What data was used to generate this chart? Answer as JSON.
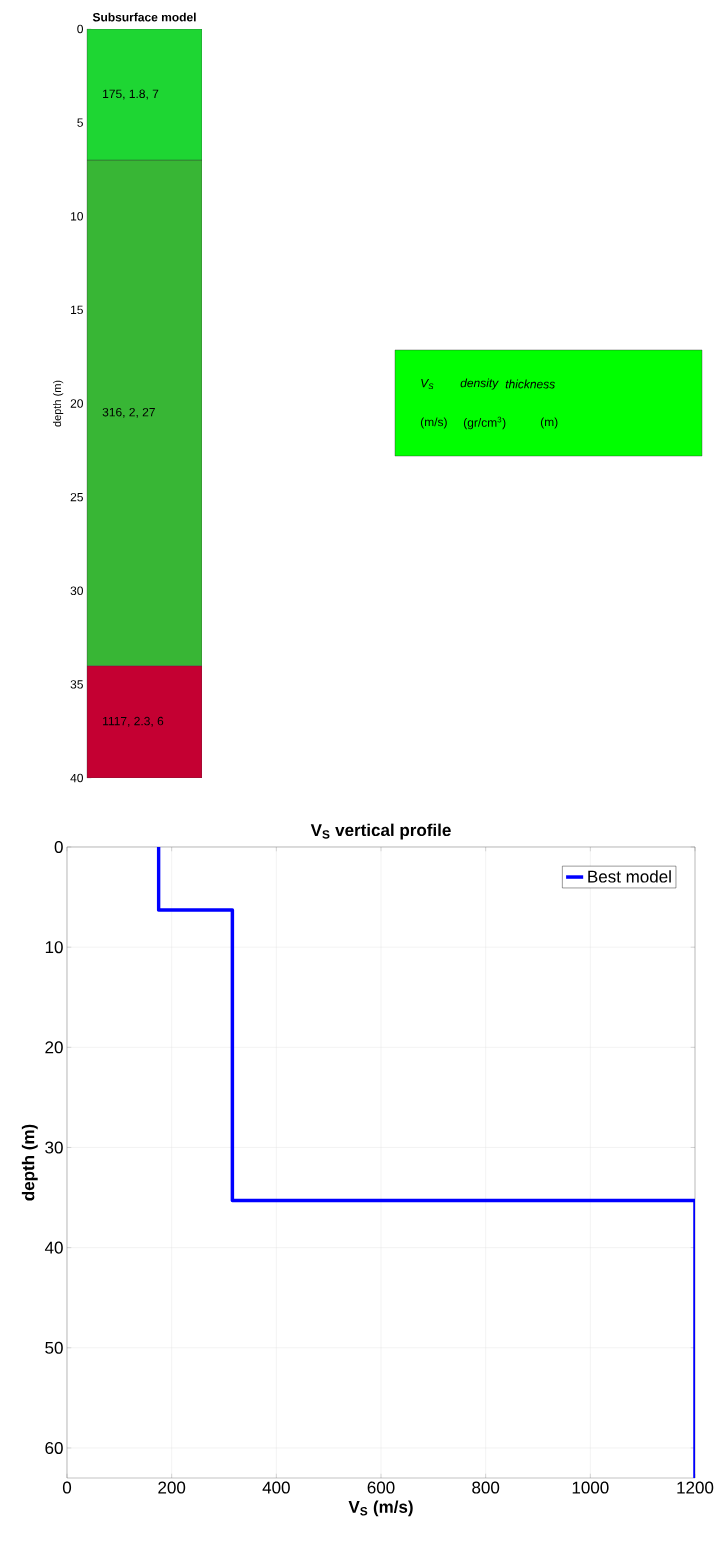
{
  "chart_data": [
    {
      "type": "bar",
      "title": "Subsurface model",
      "ylabel": "depth (m)",
      "stacked": true,
      "categories": [
        null
      ],
      "series": [
        {
          "color": "#1ed633",
          "values": [
            7
          ],
          "value_labels": [
            "175, 1.8, 7"
          ]
        },
        {
          "color": "#38b635",
          "values": [
            27
          ],
          "value_labels": [
            "316, 2, 27"
          ]
        },
        {
          "color": "#c40032",
          "values": [
            6
          ],
          "value_labels": [
            "1117, 2.3, 6"
          ]
        }
      ],
      "ylim": [
        40,
        0
      ],
      "yticks": [
        0,
        5,
        10,
        15,
        20,
        25,
        30,
        35,
        40
      ],
      "tick_labels": "y",
      "annotations": [
        "V$_{S}$",
        "density",
        "thickness",
        "(m/s)",
        "(gr/cm$^{3}$)",
        "(m)"
      ]
    },
    {
      "type": "line",
      "title": "V$_{S}$ vertical profile",
      "xlabel": "V$_{S}$ (m/s)",
      "ylabel": "depth (m)",
      "series": [
        {
          "name": "Best model",
          "color": "#0000ff",
          "x": [
            175,
            175,
            316,
            316,
            1200,
            1200
          ],
          "values": [
            0,
            6.3,
            6.3,
            35.3,
            35.3,
            63
          ]
        }
      ],
      "xlim": [
        0,
        1200
      ],
      "xticks": [
        0,
        200,
        400,
        600,
        800,
        1000,
        1200
      ],
      "ylim": [
        63,
        0
      ],
      "yticks": [
        0,
        10,
        20,
        30,
        40,
        50,
        60
      ],
      "grid": true,
      "legend": "top right"
    }
  ]
}
